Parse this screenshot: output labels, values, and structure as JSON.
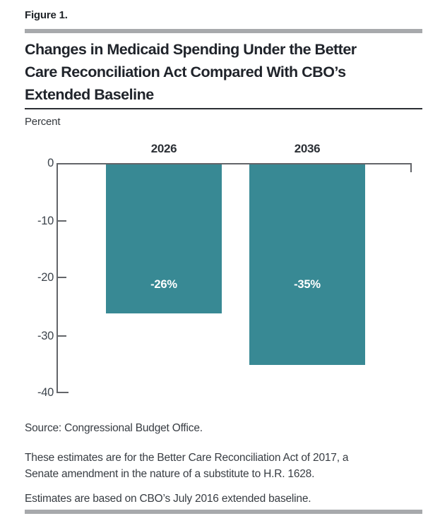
{
  "figure_label": "Figure 1.",
  "title_lines": [
    "Changes in Medicaid Spending Under the Better",
    "Care Reconciliation Act Compared With CBO’s",
    "Extended Baseline"
  ],
  "axis_unit_label": "Percent",
  "chart_data": {
    "type": "bar",
    "title": "Changes in Medicaid Spending Under the Better Care Reconciliation Act Compared With CBO’s Extended Baseline",
    "categories": [
      "2026",
      "2036"
    ],
    "values": [
      -26,
      -35
    ],
    "bar_labels": [
      "-26%",
      "-35%"
    ],
    "xlabel": "",
    "ylabel": "Percent",
    "ylim": [
      -40,
      0
    ],
    "yticks": [
      "0",
      "-10",
      "-20",
      "-30",
      "-40"
    ],
    "bar_color": "#388994",
    "grid": false,
    "legend": "none"
  },
  "notes": {
    "source": "Source: Congressional Budget Office.",
    "body_lines": [
      "These estimates are for the Better Care Reconciliation Act of 2017, a",
      "Senate amendment in the nature of a substitute to H.R. 1628."
    ],
    "baseline": "Estimates are based on CBO’s July 2016 extended baseline."
  },
  "colors": {
    "bar": "#388994",
    "axis": "#636569",
    "title_text": "#20242b",
    "note_text": "#383d43",
    "rule_gray": "#a7a9ac"
  }
}
